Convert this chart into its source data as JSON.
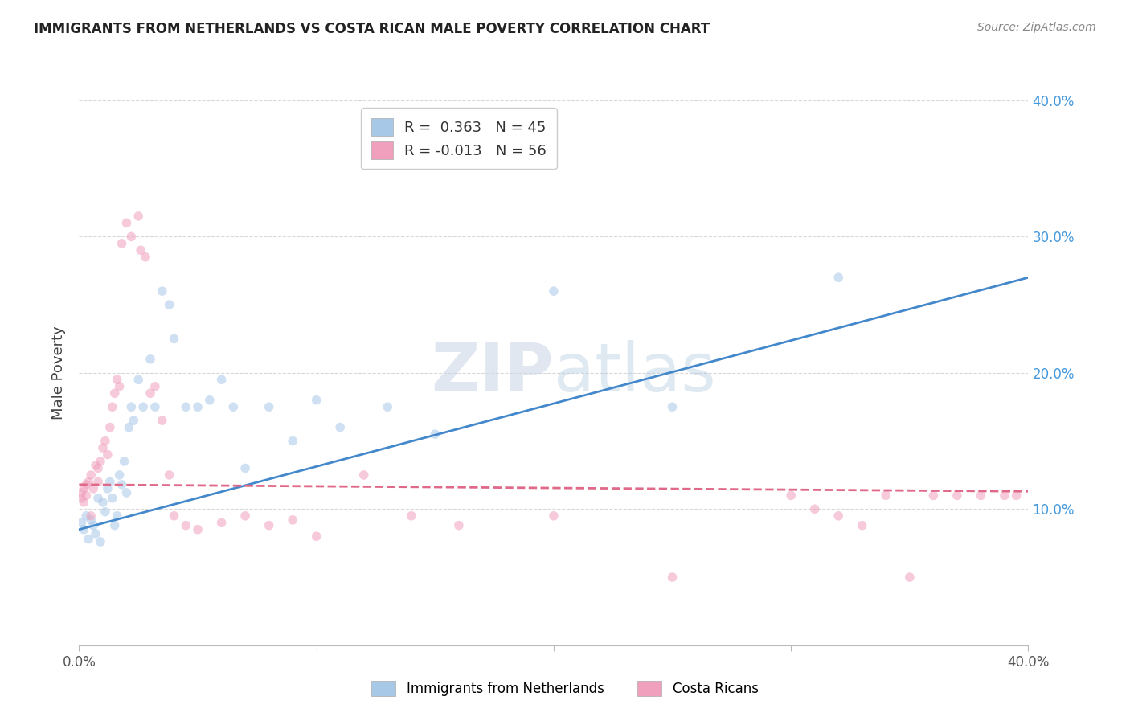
{
  "title": "IMMIGRANTS FROM NETHERLANDS VS COSTA RICAN MALE POVERTY CORRELATION CHART",
  "source": "Source: ZipAtlas.com",
  "ylabel": "Male Poverty",
  "xlim": [
    0,
    0.4
  ],
  "ylim": [
    0,
    0.4
  ],
  "watermark_zip": "ZIP",
  "watermark_atlas": "atlas",
  "blue_R": 0.363,
  "blue_N": 45,
  "pink_R": -0.013,
  "pink_N": 56,
  "blue_color": "#a8c8e8",
  "pink_color": "#f0a0bc",
  "blue_line_color": "#4488cc",
  "pink_line_color": "#e06888",
  "grid_color": "#d8d8d8",
  "background_color": "#ffffff",
  "blue_scatter_x": [
    0.001,
    0.002,
    0.003,
    0.004,
    0.005,
    0.006,
    0.007,
    0.008,
    0.009,
    0.01,
    0.011,
    0.012,
    0.013,
    0.014,
    0.015,
    0.016,
    0.017,
    0.018,
    0.019,
    0.02,
    0.021,
    0.022,
    0.023,
    0.025,
    0.027,
    0.03,
    0.032,
    0.035,
    0.038,
    0.04,
    0.045,
    0.05,
    0.055,
    0.06,
    0.065,
    0.07,
    0.08,
    0.09,
    0.1,
    0.11,
    0.13,
    0.15,
    0.2,
    0.25,
    0.32
  ],
  "blue_scatter_y": [
    0.09,
    0.085,
    0.095,
    0.078,
    0.092,
    0.088,
    0.082,
    0.108,
    0.076,
    0.105,
    0.098,
    0.115,
    0.12,
    0.108,
    0.088,
    0.095,
    0.125,
    0.118,
    0.135,
    0.112,
    0.16,
    0.175,
    0.165,
    0.195,
    0.175,
    0.21,
    0.175,
    0.26,
    0.25,
    0.225,
    0.175,
    0.175,
    0.18,
    0.195,
    0.175,
    0.13,
    0.175,
    0.15,
    0.18,
    0.16,
    0.175,
    0.155,
    0.26,
    0.175,
    0.27
  ],
  "pink_scatter_x": [
    0.001,
    0.001,
    0.002,
    0.002,
    0.003,
    0.003,
    0.004,
    0.005,
    0.005,
    0.006,
    0.007,
    0.008,
    0.008,
    0.009,
    0.01,
    0.011,
    0.012,
    0.013,
    0.014,
    0.015,
    0.016,
    0.017,
    0.018,
    0.02,
    0.022,
    0.025,
    0.026,
    0.028,
    0.03,
    0.032,
    0.035,
    0.038,
    0.04,
    0.045,
    0.05,
    0.06,
    0.07,
    0.08,
    0.09,
    0.1,
    0.12,
    0.14,
    0.16,
    0.2,
    0.25,
    0.3,
    0.31,
    0.32,
    0.33,
    0.34,
    0.35,
    0.36,
    0.37,
    0.38,
    0.39,
    0.395
  ],
  "pink_scatter_y": [
    0.112,
    0.108,
    0.115,
    0.105,
    0.118,
    0.11,
    0.12,
    0.095,
    0.125,
    0.115,
    0.132,
    0.13,
    0.12,
    0.135,
    0.145,
    0.15,
    0.14,
    0.16,
    0.175,
    0.185,
    0.195,
    0.19,
    0.295,
    0.31,
    0.3,
    0.315,
    0.29,
    0.285,
    0.185,
    0.19,
    0.165,
    0.125,
    0.095,
    0.088,
    0.085,
    0.09,
    0.095,
    0.088,
    0.092,
    0.08,
    0.125,
    0.095,
    0.088,
    0.095,
    0.05,
    0.11,
    0.1,
    0.095,
    0.088,
    0.11,
    0.05,
    0.11,
    0.11,
    0.11,
    0.11,
    0.11
  ],
  "blue_line_x": [
    0.0,
    0.4
  ],
  "blue_line_y": [
    0.085,
    0.27
  ],
  "pink_line_x": [
    0.0,
    0.4
  ],
  "pink_line_y": [
    0.118,
    0.113
  ],
  "marker_size": 70,
  "alpha": 0.55,
  "legend_blue_label": "R =  0.363   N = 45",
  "legend_pink_label": "R = -0.013   N = 56",
  "bottom_legend_blue": "Immigrants from Netherlands",
  "bottom_legend_pink": "Costa Ricans"
}
